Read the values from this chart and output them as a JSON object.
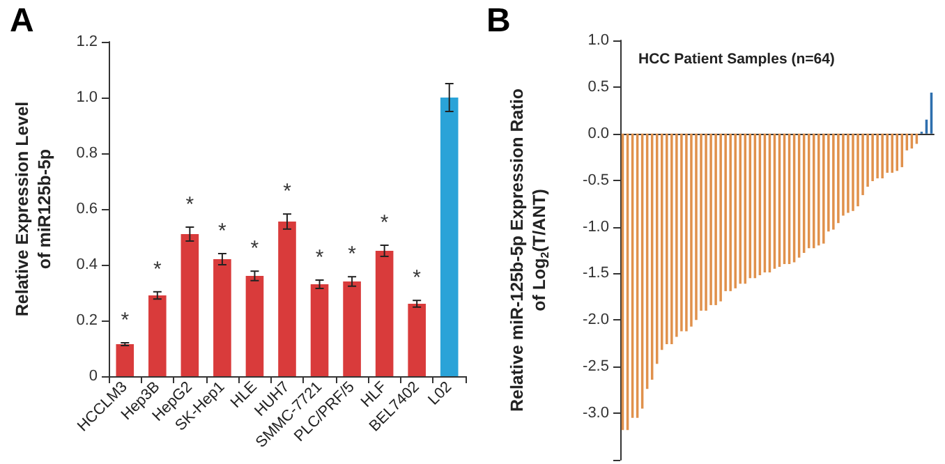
{
  "chart_data": [
    {
      "type": "bar",
      "title": "A",
      "ylabel": "Relative Expression Level\nof miR125b-5p",
      "categories": [
        "HCCLM3",
        "Hep3B",
        "HepG2",
        "SK-Hep1",
        "HLE",
        "HUH7",
        "SMMC-7721",
        "PLC/PRF/5",
        "HLF",
        "BEL7402",
        "L02"
      ],
      "values": [
        0.115,
        0.29,
        0.51,
        0.42,
        0.36,
        0.555,
        0.33,
        0.34,
        0.45,
        0.26,
        1.0
      ],
      "errors": [
        0.005,
        0.013,
        0.025,
        0.02,
        0.017,
        0.027,
        0.015,
        0.017,
        0.02,
        0.012,
        0.05
      ],
      "colors": [
        "#d93b3b",
        "#d93b3b",
        "#d93b3b",
        "#d93b3b",
        "#d93b3b",
        "#d93b3b",
        "#d93b3b",
        "#d93b3b",
        "#d93b3b",
        "#d93b3b",
        "#2aa3d8"
      ],
      "ylim": [
        0,
        1.2
      ],
      "yticks": [
        0,
        0.2,
        0.4,
        0.6,
        0.8,
        {
          "value": 1,
          "label": "1.0"
        },
        1.2
      ],
      "annotations": [
        {
          "text": "*",
          "x": "HCCLM3",
          "y": 0.115
        },
        {
          "text": "*",
          "x": "Hep3B",
          "y": 0.29
        },
        {
          "text": "*",
          "x": "HepG2",
          "y": 0.51
        },
        {
          "text": "*",
          "x": "SK-Hep1",
          "y": 0.42
        },
        {
          "text": "*",
          "x": "HLE",
          "y": 0.36
        },
        {
          "text": "*",
          "x": "HUH7",
          "y": 0.555
        },
        {
          "text": "*",
          "x": "SMMC-7721",
          "y": 0.33
        },
        {
          "text": "*",
          "x": "PLC/PRF/5",
          "y": 0.34
        },
        {
          "text": "*",
          "x": "HLF",
          "y": 0.45
        },
        {
          "text": "*",
          "x": "BEL7402",
          "y": 0.26
        }
      ]
    },
    {
      "type": "bar",
      "title": "B",
      "subtitle": "HCC Patient Samples (n=64)",
      "ylabel": "Relative miR-125b-5p Expression Ratio\nof Log$_{2}$(T/ANT)",
      "categories": [
        null,
        null,
        null,
        null,
        null,
        null,
        null,
        null,
        null,
        null,
        null,
        null,
        null,
        null,
        null,
        null,
        null,
        null,
        null,
        null,
        null,
        null,
        null,
        null,
        null,
        null,
        null,
        null,
        null,
        null,
        null,
        null,
        null,
        null,
        null,
        null,
        null,
        null,
        null,
        null,
        null,
        null,
        null,
        null,
        null,
        null,
        null,
        null,
        null,
        null,
        null,
        null,
        null,
        null,
        null,
        null,
        null,
        null,
        null,
        null,
        null,
        null,
        null,
        null
      ],
      "values": [
        -3.18,
        -3.18,
        -3.05,
        -3.05,
        -2.95,
        -2.74,
        -2.64,
        -2.47,
        -2.32,
        -2.26,
        -2.26,
        -2.18,
        -2.12,
        -2.12,
        -2.07,
        -2.0,
        -1.9,
        -1.9,
        -1.84,
        -1.84,
        -1.8,
        -1.69,
        -1.69,
        -1.66,
        -1.61,
        -1.61,
        -1.55,
        -1.55,
        -1.52,
        -1.49,
        -1.49,
        -1.45,
        -1.43,
        -1.4,
        -1.4,
        -1.38,
        -1.33,
        -1.28,
        -1.23,
        -1.23,
        -1.2,
        -1.18,
        -1.05,
        -1.03,
        -0.96,
        -0.88,
        -0.85,
        -0.83,
        -0.78,
        -0.66,
        -0.57,
        -0.51,
        -0.48,
        -0.48,
        -0.42,
        -0.42,
        -0.4,
        -0.36,
        -0.18,
        -0.16,
        -0.11,
        0.02,
        0.15,
        0.44
      ],
      "colors": [
        "#e0914c",
        "#e0914c",
        "#e0914c",
        "#e0914c",
        "#e0914c",
        "#e0914c",
        "#e0914c",
        "#e0914c",
        "#e0914c",
        "#e0914c",
        "#e0914c",
        "#e0914c",
        "#e0914c",
        "#e0914c",
        "#e0914c",
        "#e0914c",
        "#e0914c",
        "#e0914c",
        "#e0914c",
        "#e0914c",
        "#e0914c",
        "#e0914c",
        "#e0914c",
        "#e0914c",
        "#e0914c",
        "#e0914c",
        "#e0914c",
        "#e0914c",
        "#e0914c",
        "#e0914c",
        "#e0914c",
        "#e0914c",
        "#e0914c",
        "#e0914c",
        "#e0914c",
        "#e0914c",
        "#e0914c",
        "#e0914c",
        "#e0914c",
        "#e0914c",
        "#e0914c",
        "#e0914c",
        "#e0914c",
        "#e0914c",
        "#e0914c",
        "#e0914c",
        "#e0914c",
        "#e0914c",
        "#e0914c",
        "#e0914c",
        "#e0914c",
        "#e0914c",
        "#e0914c",
        "#e0914c",
        "#e0914c",
        "#e0914c",
        "#e0914c",
        "#e0914c",
        "#e0914c",
        "#e0914c",
        "#e0914c",
        "#2e6fae",
        "#2e6fae",
        "#2e6fae"
      ],
      "ylim": [
        -3.5,
        1
      ],
      "yticks": [
        {
          "value": 1,
          "label": "1.0"
        },
        0.5,
        {
          "value": 0,
          "label": "0.0"
        },
        -0.5,
        {
          "value": -1,
          "label": "-1.0"
        },
        -1.5,
        {
          "value": -2,
          "label": "-2.0"
        },
        -2.5,
        {
          "value": -3,
          "label": "-3.0"
        },
        {
          "value": -3.5,
          "label": null
        }
      ],
      "tick_labels": "y"
    }
  ]
}
